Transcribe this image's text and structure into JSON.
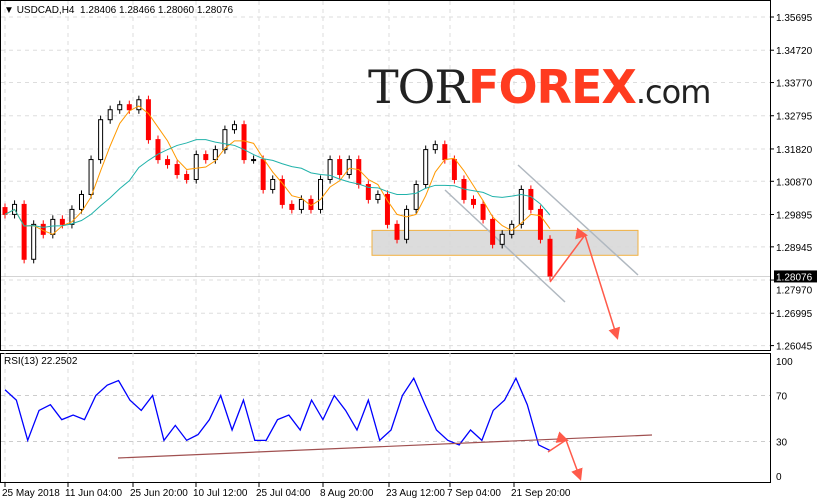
{
  "header": {
    "symbol": "USDCAD,H4",
    "open": "1.28406",
    "high": "1.28466",
    "low": "1.28060",
    "close": "1.28076"
  },
  "rsi_header": "RSI(13) 22.2502",
  "logo": {
    "part1": "TOR",
    "part2": "FOREX",
    "part3": ".com"
  },
  "colors": {
    "bull": "#000000",
    "bear": "#ff0000",
    "ma_fast": "#ff9900",
    "ma_slow": "#20b2aa",
    "rsi": "#0000ff",
    "trend": "#a05050",
    "arrow": "#ff5a4a",
    "channel": "#b0b8c0",
    "zone": "#d8d8d8"
  },
  "chart_data": [
    {
      "type": "candlestick",
      "title": "",
      "ylim": [
        1.26045,
        1.361
      ],
      "y_ticks": [
        "1.35695",
        "1.34720",
        "1.33770",
        "1.32795",
        "1.31820",
        "1.30870",
        "1.29895",
        "1.28945",
        "1.27970",
        "1.26995",
        "1.26045"
      ],
      "current_price": "1.28076",
      "closes": [
        1.29898,
        1.30191,
        1.2858,
        1.29605,
        1.29312,
        1.29751,
        1.29605,
        1.30044,
        1.30483,
        1.31508,
        1.32679,
        1.32972,
        1.33119,
        1.32972,
        1.33265,
        1.32094,
        1.31508,
        1.31362,
        1.31069,
        1.30923,
        1.31655,
        1.31508,
        1.31801,
        1.32387,
        1.32533,
        1.31508,
        1.31508,
        1.3063,
        1.30923,
        1.30191,
        1.30044,
        1.30337,
        1.30044,
        1.30923,
        1.31508,
        1.31069,
        1.31508,
        1.30776,
        1.30337,
        1.30483,
        1.29605,
        1.29166,
        1.30044,
        1.30776,
        1.31801,
        1.31947,
        1.31508,
        1.30923,
        1.30337,
        1.30191,
        1.29751,
        1.29019,
        1.29312,
        1.29605,
        1.3063,
        1.30044,
        1.29166,
        1.28076
      ],
      "support_zone": [
        1.28697,
        1.29429
      ],
      "x_ticks": [
        "25 May 2018",
        "11 Jun 04:00",
        "25 Jun 20:00",
        "10 Jul 12:00",
        "25 Jul 04:00",
        "8 Aug 20:00",
        "23 Aug 12:00",
        "7 Sep 04:00",
        "21 Sep 20:00"
      ]
    },
    {
      "type": "line",
      "title": "RSI(13)",
      "ylim": [
        0,
        100
      ],
      "y_ticks": [
        "100",
        "70",
        "30",
        "0"
      ],
      "values": [
        75,
        66,
        31,
        57,
        62,
        49,
        53,
        49,
        70,
        79,
        83,
        66,
        57,
        70,
        31,
        44,
        31,
        36,
        49,
        70,
        40,
        66,
        31,
        31,
        49,
        53,
        40,
        66,
        49,
        70,
        57,
        40,
        66,
        31,
        40,
        70,
        85,
        62,
        40,
        31,
        27,
        40,
        31,
        57,
        66,
        85,
        62,
        27,
        22.25
      ]
    }
  ]
}
